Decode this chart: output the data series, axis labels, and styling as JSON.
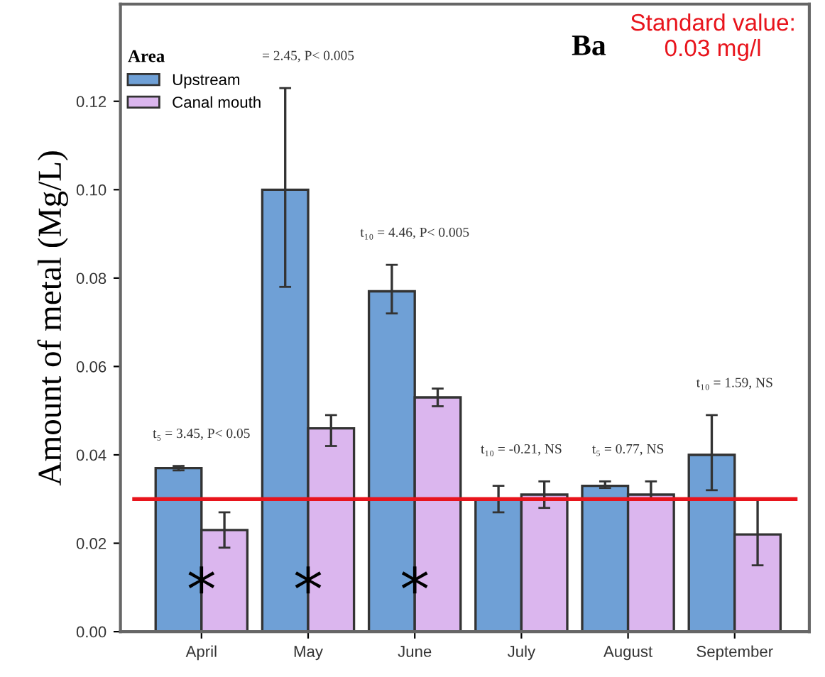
{
  "chart_data": {
    "type": "bar",
    "title": "Ba",
    "ylabel": "Amount of metal (Mg/L)",
    "legend_title": "Area",
    "legend": "top left",
    "grid": false,
    "categories": [
      "April",
      "May",
      "June",
      "July",
      "August",
      "September"
    ],
    "series": [
      {
        "name": "Upstream",
        "color": "#6fa0d6",
        "values": [
          0.037,
          0.1,
          0.077,
          0.03,
          0.033,
          0.04
        ],
        "errors": [
          [
            0.0365,
            0.0375
          ],
          [
            0.078,
            0.123
          ],
          [
            0.072,
            0.083
          ],
          [
            0.027,
            0.033
          ],
          [
            0.0325,
            0.034
          ],
          [
            0.032,
            0.049
          ]
        ]
      },
      {
        "name": "Canal mouth",
        "color": "#dbb6ee",
        "values": [
          0.023,
          0.046,
          0.053,
          0.031,
          0.031,
          0.022
        ],
        "errors": [
          [
            0.019,
            0.027
          ],
          [
            0.042,
            0.049
          ],
          [
            0.051,
            0.055
          ],
          [
            0.028,
            0.034
          ],
          [
            0.03,
            0.034
          ],
          [
            0.015,
            0.03
          ]
        ]
      }
    ],
    "ylim": [
      0,
      0.142
    ],
    "yticks": [
      {
        "value": 0,
        "label": "0.00"
      },
      {
        "value": 0.02,
        "label": "0.02"
      },
      {
        "value": 0.04,
        "label": "0.04"
      },
      {
        "value": 0.06,
        "label": "0.06"
      },
      {
        "value": 0.08,
        "label": "0.08"
      },
      {
        "value": 0.1,
        "label": "0.10"
      },
      {
        "value": 0.12,
        "label": "0.12"
      }
    ],
    "ref_lines": [
      {
        "axis": "y",
        "value": 0.03,
        "label": "Standard value:\n0.03 mg/l",
        "color": "#e8141c"
      }
    ],
    "annotations": [
      "t₅ = 3.45, P< 0.05",
      "= 2.45, P< 0.005",
      "t₁₀ = 4.46, P< 0.005",
      "t₁₀ = -0.21, NS",
      "t₅ = 0.77, NS",
      "t₁₀ = 1.59, NS",
      "*",
      "*",
      "*"
    ]
  }
}
